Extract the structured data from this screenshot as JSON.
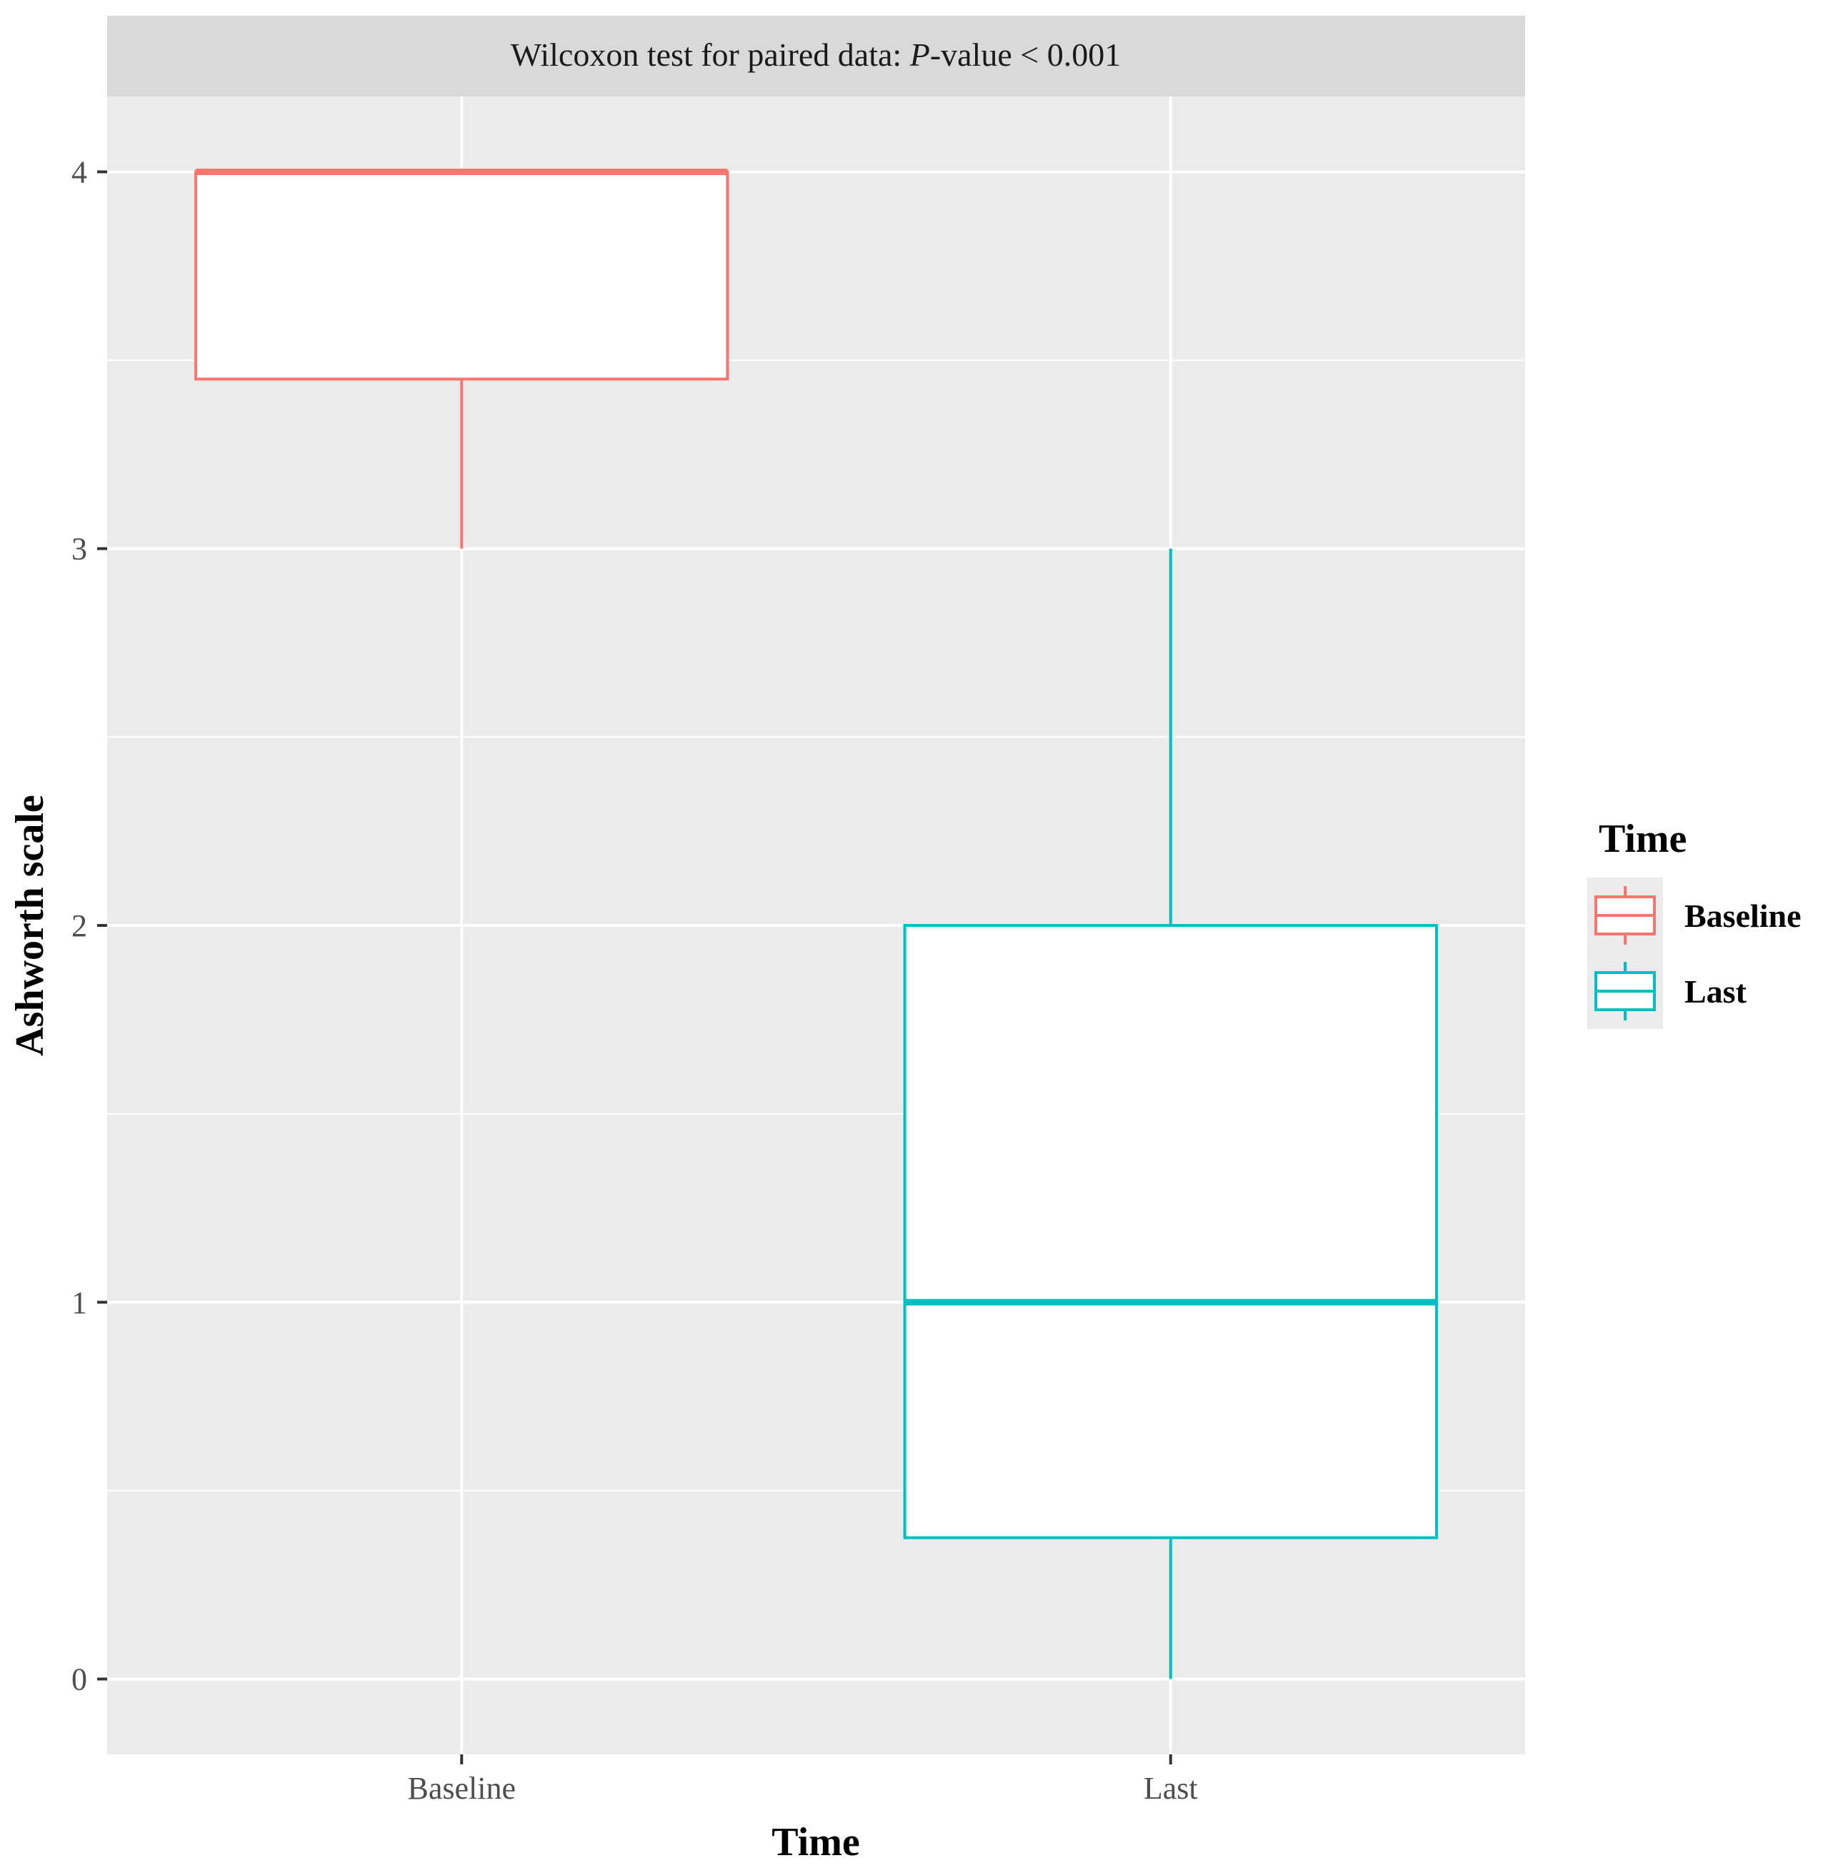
{
  "chart_data": {
    "type": "boxplot",
    "facet_strip": {
      "prefix": "Wilcoxon test for paired data: ",
      "italic": "P",
      "suffix": "-value < 0.001"
    },
    "xlabel": "Time",
    "ylabel": "Ashworth scale",
    "categories": [
      "Baseline",
      "Last"
    ],
    "y_ticks": [
      0,
      1,
      2,
      3,
      4
    ],
    "ylim": [
      -0.2,
      4.2
    ],
    "grid": true,
    "legend": {
      "title": "Time",
      "position": "right",
      "entries": [
        "Baseline",
        "Last"
      ]
    },
    "series": [
      {
        "name": "Baseline",
        "color": "#F8766D",
        "min": 3,
        "q1": 3.45,
        "median": 4,
        "q3": 4,
        "max": 4
      },
      {
        "name": "Last",
        "color": "#00BFC4",
        "min": 0,
        "q1": 0.375,
        "median": 1,
        "q3": 2,
        "max": 3
      }
    ]
  }
}
